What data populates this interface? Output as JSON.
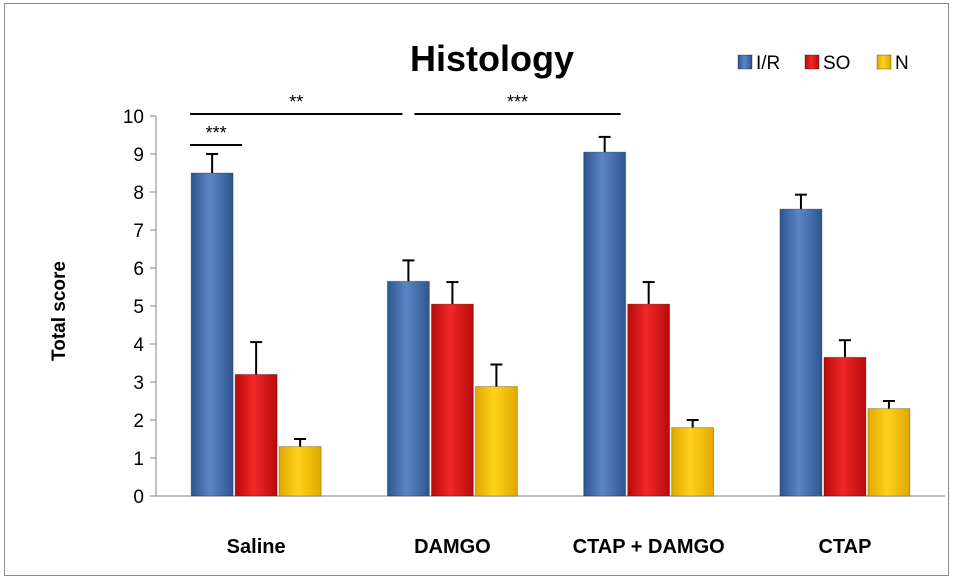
{
  "chart_data": {
    "type": "bar",
    "title": "Histology",
    "xlabel": "",
    "ylabel": "Total score",
    "ylim": [
      0,
      10
    ],
    "yticks": [
      "0",
      "1",
      "2",
      "3",
      "4",
      "5",
      "6",
      "7",
      "8",
      "9",
      "10"
    ],
    "categories": [
      "Saline",
      "DAMGO",
      "CTAP + DAMGO",
      "CTAP"
    ],
    "series": [
      {
        "name": "I/R",
        "color": "#4a74b0",
        "values": [
          8.5,
          5.65,
          9.05,
          7.55
        ],
        "errors": [
          0.5,
          0.55,
          0.4,
          0.38
        ]
      },
      {
        "name": "SO",
        "color": "#e01818",
        "values": [
          3.2,
          5.05,
          5.05,
          3.65
        ],
        "errors": [
          0.85,
          0.58,
          0.58,
          0.45
        ]
      },
      {
        "name": "N",
        "color": "#f5c400",
        "values": [
          1.3,
          2.88,
          1.8,
          2.3
        ],
        "errors": [
          0.2,
          0.58,
          0.2,
          0.2
        ]
      }
    ],
    "legend_position": "top-right",
    "grid": false,
    "significance": [
      {
        "label": "***",
        "from": "Saline I/R",
        "to": "Saline SO"
      },
      {
        "label": "**",
        "from": "Saline",
        "to": "DAMGO"
      },
      {
        "label": "***",
        "from": "DAMGO",
        "to": "CTAP + DAMGO"
      }
    ]
  }
}
